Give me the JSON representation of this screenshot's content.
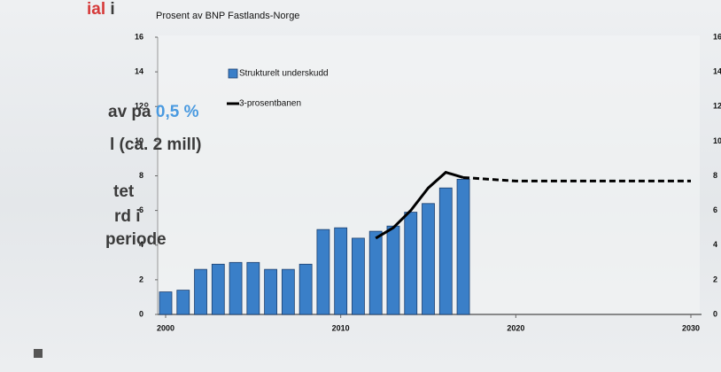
{
  "slide_text": [
    [
      "ial",
      " i"
    ],
    [
      "av på ",
      "0,5 %"
    ],
    [
      "l (ca. 2 mill)"
    ],
    [
      "tet"
    ],
    [
      "rd i"
    ],
    [
      "periode"
    ]
  ],
  "chart_data": {
    "type": "bar",
    "title": "Prosent av BNP Fastlands-Norge",
    "x": [
      2000,
      2001,
      2002,
      2003,
      2004,
      2005,
      2006,
      2007,
      2008,
      2009,
      2010,
      2011,
      2012,
      2013,
      2014,
      2015,
      2016,
      2017
    ],
    "series": [
      {
        "name": "Strukturelt underskudd",
        "type": "bar",
        "color": "#3a7fc8",
        "values": [
          1.3,
          1.4,
          2.6,
          2.9,
          3.0,
          3.0,
          2.6,
          2.6,
          2.9,
          4.9,
          5.0,
          4.4,
          4.8,
          5.1,
          5.9,
          6.4,
          7.3,
          7.8
        ]
      },
      {
        "name": "3-prosentbanen",
        "type": "line",
        "color": "#000000",
        "x": [
          2012,
          2013,
          2014,
          2015,
          2016,
          2017
        ],
        "values": [
          4.4,
          5.0,
          6.0,
          7.3,
          8.2,
          7.9
        ]
      },
      {
        "type": "line",
        "color": "#000000",
        "dashed": true,
        "x": [
          2017,
          2020,
          2025,
          2030
        ],
        "values": [
          7.9,
          7.7,
          7.7,
          7.7
        ]
      }
    ],
    "xlim": [
      2000,
      2030
    ],
    "xticks": [
      2000,
      2010,
      2020,
      2030
    ],
    "ylim": [
      0,
      16
    ],
    "yticks": [
      0,
      2,
      4,
      6,
      8,
      10,
      12,
      14,
      16
    ],
    "y2lim": [
      0,
      16
    ],
    "y2ticks": [
      0,
      2,
      4,
      6,
      8,
      10,
      12,
      14,
      16
    ],
    "legend": "upper-left"
  }
}
